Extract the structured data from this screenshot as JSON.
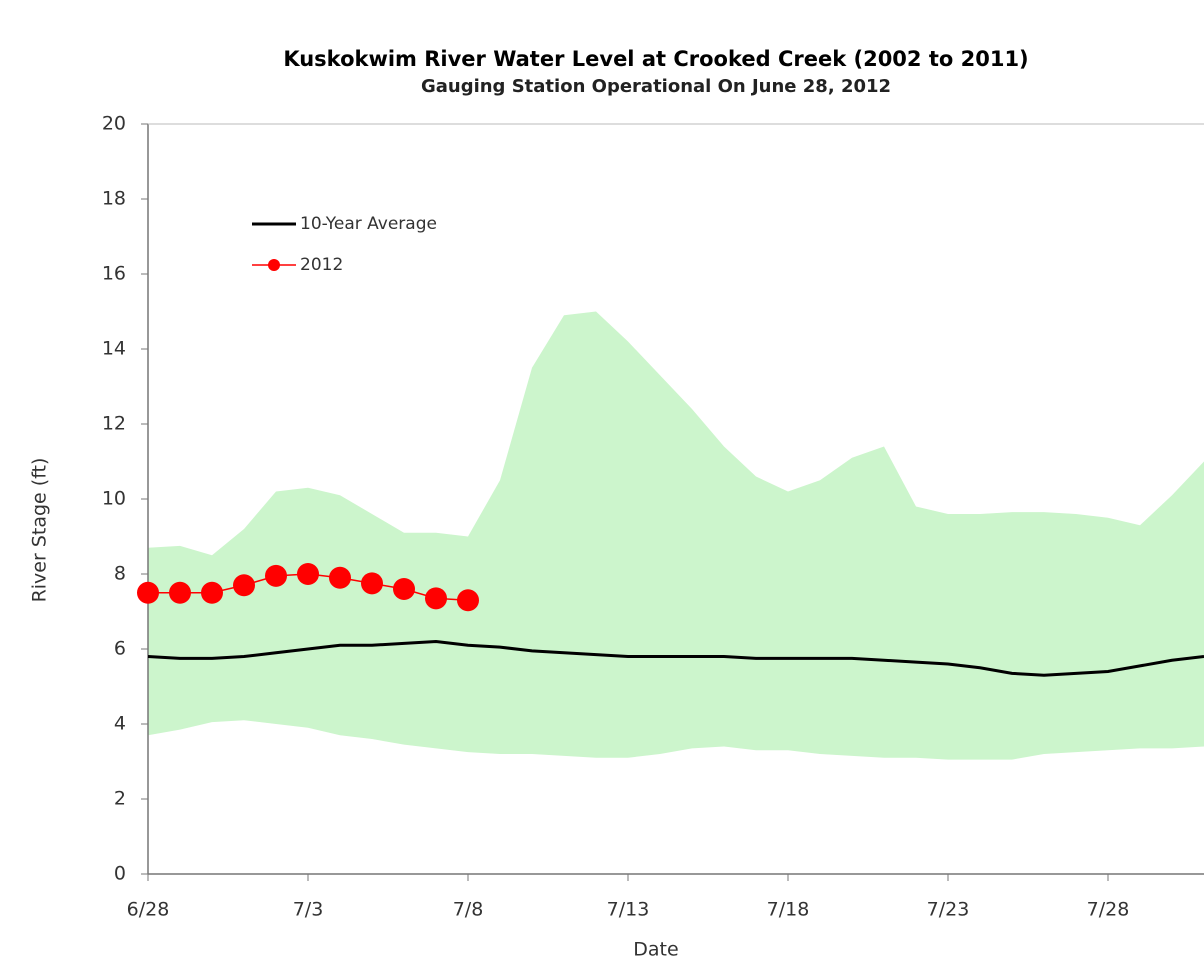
{
  "chart_data": {
    "type": "line",
    "title": "Kuskokwim River Water Level at Crooked Creek (2002 to 2011)",
    "subtitle": "Gauging Station Operational On June 28, 2012",
    "xlabel": "Date",
    "ylabel": "River Stage (ft)",
    "categories": [
      "6/28",
      null,
      null,
      null,
      null,
      "7/3",
      null,
      null,
      null,
      null,
      "7/8",
      null,
      null,
      null,
      null,
      "7/13",
      null,
      null,
      null,
      null,
      "7/18",
      null,
      null,
      null,
      null,
      "7/23",
      null,
      null,
      null,
      null,
      "7/28",
      null,
      null,
      null
    ],
    "band": {
      "color": "#ccf5cc",
      "upper": [
        8.7,
        8.75,
        8.5,
        9.2,
        10.2,
        10.3,
        10.1,
        9.6,
        9.1,
        9.1,
        9.0,
        10.5,
        13.5,
        14.9,
        15.0,
        14.2,
        13.3,
        12.4,
        11.4,
        10.6,
        10.2,
        10.5,
        11.1,
        11.4,
        9.8,
        9.6,
        9.6,
        9.65,
        9.65,
        9.6,
        9.5,
        9.3,
        10.1,
        11.0
      ],
      "lower": [
        3.7,
        3.85,
        4.05,
        4.1,
        4.0,
        3.9,
        3.7,
        3.6,
        3.45,
        3.35,
        3.25,
        3.2,
        3.2,
        3.15,
        3.1,
        3.1,
        3.2,
        3.35,
        3.4,
        3.3,
        3.3,
        3.2,
        3.15,
        3.1,
        3.1,
        3.05,
        3.05,
        3.05,
        3.2,
        3.25,
        3.3,
        3.35,
        3.35,
        3.4
      ]
    },
    "series": [
      {
        "name": "10-Year Average",
        "color": "#000000",
        "marker": false,
        "values": [
          5.8,
          5.75,
          5.75,
          5.8,
          5.9,
          6.0,
          6.1,
          6.1,
          6.15,
          6.2,
          6.1,
          6.05,
          5.95,
          5.9,
          5.85,
          5.8,
          5.8,
          5.8,
          5.8,
          5.75,
          5.75,
          5.75,
          5.75,
          5.7,
          5.65,
          5.6,
          5.5,
          5.35,
          5.3,
          5.35,
          5.4,
          5.55,
          5.7,
          5.8
        ]
      },
      {
        "name": "2012",
        "color": "#ff0000",
        "marker": true,
        "values": [
          7.5,
          7.5,
          7.5,
          7.7,
          7.95,
          8.0,
          7.9,
          7.75,
          7.6,
          7.35,
          7.3,
          null,
          null,
          null,
          null,
          null,
          null,
          null,
          null,
          null,
          null,
          null,
          null,
          null,
          null,
          null,
          null,
          null,
          null,
          null,
          null,
          null,
          null,
          null
        ]
      }
    ],
    "ylim": [
      0,
      20
    ],
    "yticks": [
      0,
      2,
      4,
      6,
      8,
      10,
      12,
      14,
      16,
      18,
      20
    ],
    "legend": "upper-left"
  }
}
